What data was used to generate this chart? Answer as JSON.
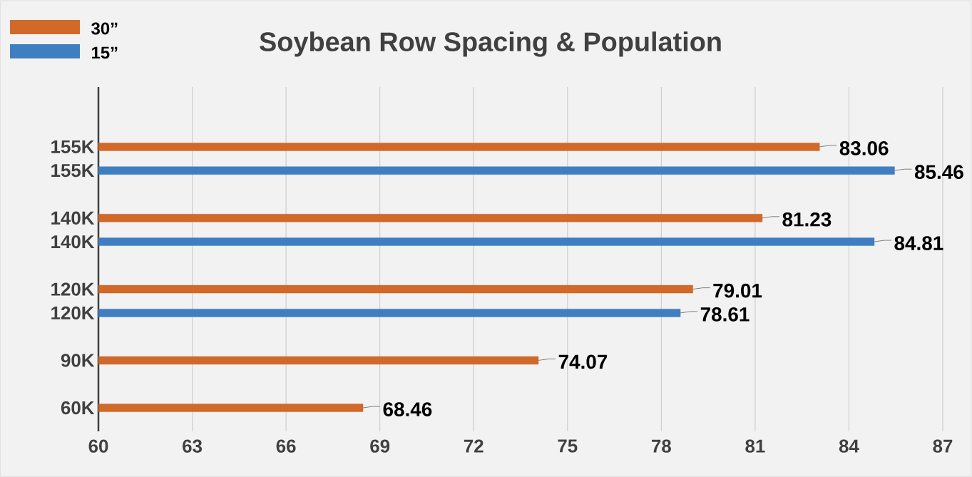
{
  "chart_data": {
    "type": "bar",
    "orientation": "horizontal",
    "title": "Soybean Row Spacing & Population",
    "categories": [
      "155K",
      "155K",
      null,
      "140K",
      "140K",
      null,
      "120K",
      "120K",
      null,
      "90K",
      null,
      "60K"
    ],
    "series": [
      {
        "name": "30”",
        "color": "#d0692a",
        "values": [
          83.06,
          null,
          null,
          81.23,
          null,
          null,
          79.01,
          null,
          null,
          74.07,
          null,
          68.46
        ]
      },
      {
        "name": "15”",
        "color": "#3f7fc1",
        "values": [
          null,
          85.46,
          null,
          null,
          84.81,
          null,
          null,
          78.61,
          null,
          null,
          null,
          null
        ]
      }
    ],
    "xlim": [
      60,
      87
    ],
    "xticks": [
      60,
      63,
      66,
      69,
      72,
      75,
      78,
      81,
      84,
      87
    ],
    "grid": "x",
    "legend": "top left",
    "data_labels": true
  }
}
